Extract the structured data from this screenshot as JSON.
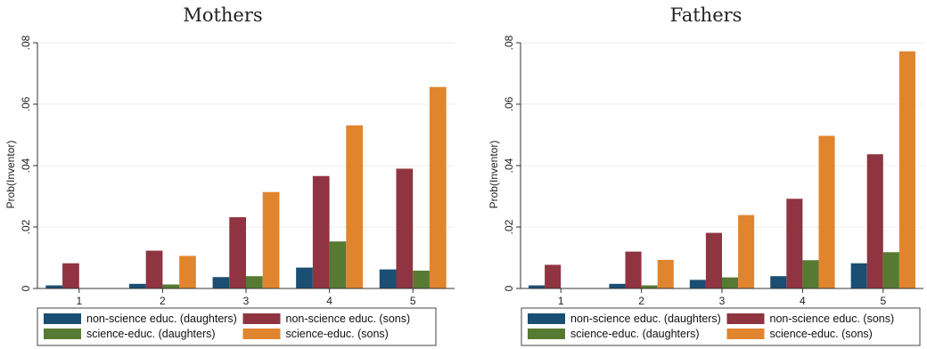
{
  "colors": {
    "non_science_daughters": "#1a4e72",
    "non_science_sons": "#8f3440",
    "science_daughters": "#577a33",
    "science_sons": "#e0852e"
  },
  "chart_data": [
    {
      "type": "bar",
      "title": "Mothers",
      "ylabel": "Prob(Inventor)",
      "xlabel": "",
      "categories": [
        "1",
        "2",
        "3",
        "4",
        "5"
      ],
      "ylim": [
        0,
        0.08
      ],
      "yticks": [
        0,
        0.02,
        0.04,
        0.06,
        0.08
      ],
      "ytick_labels": [
        "0",
        ".02",
        ".04",
        ".06",
        ".08"
      ],
      "grid": true,
      "legend_position": "bottom",
      "series": [
        {
          "name": "non-science educ. (daughters)",
          "color_key": "non_science_daughters",
          "values": [
            0.001,
            0.0015,
            0.0037,
            0.0068,
            0.0062
          ]
        },
        {
          "name": "non-science educ. (sons)",
          "color_key": "non_science_sons",
          "values": [
            0.0082,
            0.0123,
            0.0232,
            0.0366,
            0.039
          ]
        },
        {
          "name": "science-educ. (daughters)",
          "color_key": "science_daughters",
          "values": [
            0,
            0.0013,
            0.004,
            0.0153,
            0.0058
          ]
        },
        {
          "name": "science-educ. (sons)",
          "color_key": "science_sons",
          "values": [
            0,
            0.0106,
            0.0314,
            0.0531,
            0.0656
          ]
        }
      ],
      "legend_order": [
        0,
        1,
        2,
        3
      ]
    },
    {
      "type": "bar",
      "title": "Fathers",
      "ylabel": "Prob(Inventor)",
      "xlabel": "",
      "categories": [
        "1",
        "2",
        "3",
        "4",
        "5"
      ],
      "ylim": [
        0,
        0.08
      ],
      "yticks": [
        0,
        0.02,
        0.04,
        0.06,
        0.08
      ],
      "ytick_labels": [
        "0",
        ".02",
        ".04",
        ".06",
        ".08"
      ],
      "grid": true,
      "legend_position": "bottom",
      "series": [
        {
          "name": "non-science educ. (daughters)",
          "color_key": "non_science_daughters",
          "values": [
            0.001,
            0.0015,
            0.0028,
            0.004,
            0.0082
          ]
        },
        {
          "name": "non-science educ. (sons)",
          "color_key": "non_science_sons",
          "values": [
            0.0077,
            0.012,
            0.0181,
            0.0292,
            0.0437
          ]
        },
        {
          "name": "science-educ. (daughters)",
          "color_key": "science_daughters",
          "values": [
            0,
            0.001,
            0.0036,
            0.0092,
            0.0118
          ]
        },
        {
          "name": "science-educ. (sons)",
          "color_key": "science_sons",
          "values": [
            0,
            0.0093,
            0.0239,
            0.0497,
            0.0772
          ]
        }
      ],
      "legend_order": [
        0,
        1,
        2,
        3
      ]
    }
  ]
}
